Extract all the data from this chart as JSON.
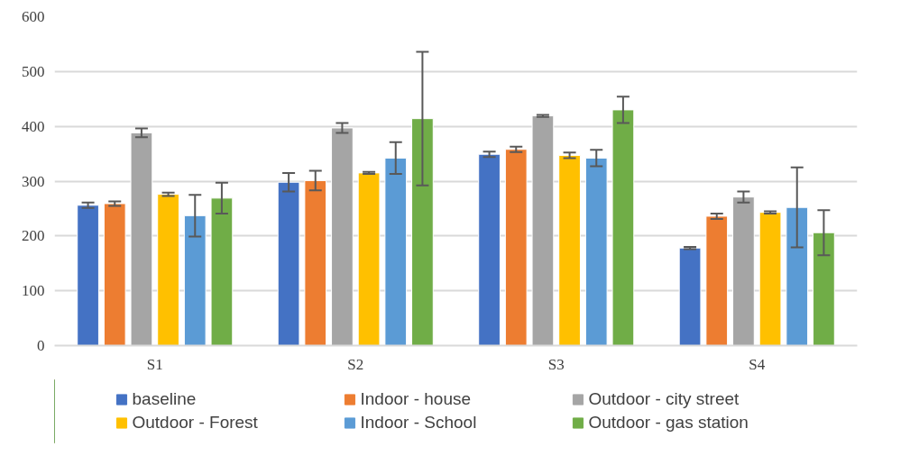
{
  "chart_data": {
    "type": "bar",
    "categories": [
      "S1",
      "S2",
      "S3",
      "S4"
    ],
    "series": [
      {
        "name": "baseline",
        "color": "#4472c4",
        "values": [
          256,
          298,
          349,
          178
        ],
        "errors": [
          5,
          17,
          5,
          2
        ]
      },
      {
        "name": "Indoor - house",
        "color": "#ed7d31",
        "values": [
          259,
          301,
          358,
          236
        ],
        "errors": [
          4,
          18,
          5,
          5
        ]
      },
      {
        "name": "Outdoor - city street",
        "color": "#a5a5a5",
        "values": [
          388,
          397,
          419,
          271
        ],
        "errors": [
          8,
          9,
          2,
          10
        ]
      },
      {
        "name": "Outdoor - Forest",
        "color": "#ffc000",
        "values": [
          276,
          315,
          347,
          243
        ],
        "errors": [
          3,
          2,
          5,
          2
        ]
      },
      {
        "name": "Indoor - School",
        "color": "#5b9bd5",
        "values": [
          237,
          342,
          342,
          252
        ],
        "errors": [
          38,
          29,
          15,
          73
        ]
      },
      {
        "name": "Outdoor - gas station",
        "color": "#70ad47",
        "values": [
          269,
          414,
          430,
          206
        ],
        "errors": [
          28,
          122,
          24,
          41
        ]
      }
    ],
    "ylim": [
      0,
      600
    ],
    "yticks": [
      0,
      100,
      200,
      300,
      400,
      500,
      600
    ],
    "grid": "y",
    "legend": "bottom"
  }
}
